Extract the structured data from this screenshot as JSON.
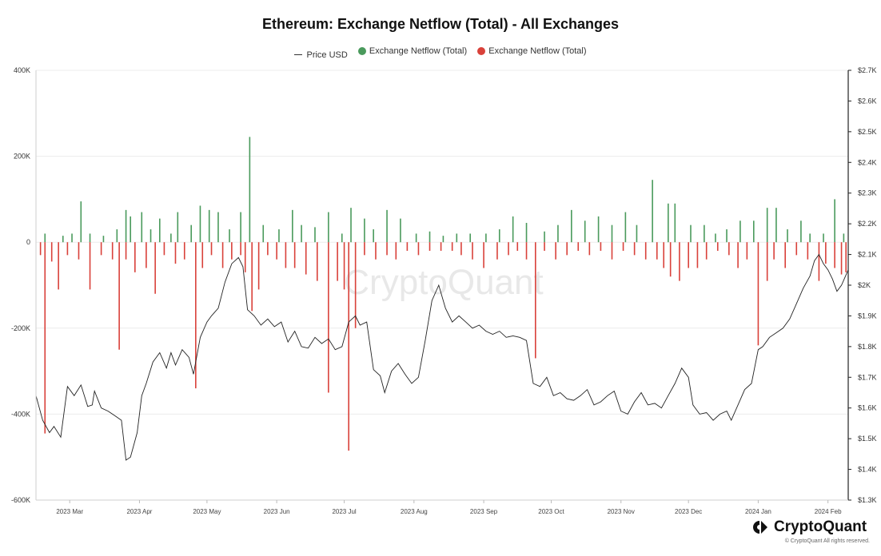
{
  "chart_data": {
    "type": "bar+line",
    "title": "Ethereum: Exchange Netflow (Total) - All Exchanges",
    "legend": [
      {
        "label": "Price USD",
        "color": "#333333",
        "marker": "line"
      },
      {
        "label": "Exchange Netflow (Total)",
        "color": "#4a9a5c",
        "marker": "dot"
      },
      {
        "label": "Exchange Netflow (Total)",
        "color": "#d9413a",
        "marker": "dot"
      }
    ],
    "legend_position": "top-center",
    "x_range": [
      "2023-02-14",
      "2024-02-10"
    ],
    "x_ticks": [
      {
        "date": "2023-03-01",
        "label": "2023 Mar"
      },
      {
        "date": "2023-04-01",
        "label": "2023 Apr"
      },
      {
        "date": "2023-05-01",
        "label": "2023 May"
      },
      {
        "date": "2023-06-01",
        "label": "2023 Jun"
      },
      {
        "date": "2023-07-01",
        "label": "2023 Jul"
      },
      {
        "date": "2023-08-01",
        "label": "2023 Aug"
      },
      {
        "date": "2023-09-01",
        "label": "2023 Sep"
      },
      {
        "date": "2023-10-01",
        "label": "2023 Oct"
      },
      {
        "date": "2023-11-01",
        "label": "2023 Nov"
      },
      {
        "date": "2023-12-01",
        "label": "2023 Dec"
      },
      {
        "date": "2024-01-01",
        "label": "2024 Jan"
      },
      {
        "date": "2024-02-01",
        "label": "2024 Feb"
      }
    ],
    "y_left": {
      "min": -600000,
      "max": 400000,
      "ticks": [
        400000,
        200000,
        0,
        -200000,
        -400000,
        -600000
      ],
      "tick_labels": [
        "400K",
        "200K",
        "0",
        "-200K",
        "-400K",
        "-600K"
      ]
    },
    "y_right": {
      "min": 1300,
      "max": 2700,
      "ticks": [
        2700,
        2600,
        2500,
        2400,
        2300,
        2200,
        2100,
        2000,
        1900,
        1800,
        1700,
        1600,
        1500,
        1400,
        1300
      ],
      "tick_labels": [
        "$2.7K",
        "$2.6K",
        "$2.5K",
        "$2.4K",
        "$2.3K",
        "$2.2K",
        "$2.1K",
        "$2K",
        "$1.9K",
        "$1.8K",
        "$1.7K",
        "$1.6K",
        "$1.5K",
        "$1.4K",
        "$1.3K"
      ]
    },
    "grid": "horizontal",
    "price_series": [
      [
        "2023-02-14",
        1640
      ],
      [
        "2023-02-17",
        1560
      ],
      [
        "2023-02-20",
        1520
      ],
      [
        "2023-02-22",
        1540
      ],
      [
        "2023-02-25",
        1505
      ],
      [
        "2023-02-28",
        1670
      ],
      [
        "2023-03-03",
        1640
      ],
      [
        "2023-03-06",
        1675
      ],
      [
        "2023-03-09",
        1605
      ],
      [
        "2023-03-11",
        1610
      ],
      [
        "2023-03-12",
        1655
      ],
      [
        "2023-03-15",
        1600
      ],
      [
        "2023-03-18",
        1590
      ],
      [
        "2023-03-21",
        1575
      ],
      [
        "2023-03-24",
        1560
      ],
      [
        "2023-03-26",
        1430
      ],
      [
        "2023-03-28",
        1440
      ],
      [
        "2023-03-31",
        1520
      ],
      [
        "2023-04-02",
        1640
      ],
      [
        "2023-04-04",
        1680
      ],
      [
        "2023-04-07",
        1750
      ],
      [
        "2023-04-10",
        1780
      ],
      [
        "2023-04-13",
        1730
      ],
      [
        "2023-04-15",
        1780
      ],
      [
        "2023-04-17",
        1740
      ],
      [
        "2023-04-20",
        1790
      ],
      [
        "2023-04-23",
        1765
      ],
      [
        "2023-04-25",
        1710
      ],
      [
        "2023-04-28",
        1830
      ],
      [
        "2023-05-01",
        1880
      ],
      [
        "2023-05-03",
        1900
      ],
      [
        "2023-05-06",
        1925
      ],
      [
        "2023-05-09",
        2010
      ],
      [
        "2023-05-12",
        2070
      ],
      [
        "2023-05-15",
        2090
      ],
      [
        "2023-05-17",
        2060
      ],
      [
        "2023-05-19",
        1920
      ],
      [
        "2023-05-22",
        1900
      ],
      [
        "2023-05-25",
        1870
      ],
      [
        "2023-05-28",
        1890
      ],
      [
        "2023-05-31",
        1865
      ],
      [
        "2023-06-03",
        1880
      ],
      [
        "2023-06-06",
        1815
      ],
      [
        "2023-06-09",
        1850
      ],
      [
        "2023-06-12",
        1800
      ],
      [
        "2023-06-15",
        1795
      ],
      [
        "2023-06-18",
        1830
      ],
      [
        "2023-06-21",
        1810
      ],
      [
        "2023-06-24",
        1825
      ],
      [
        "2023-06-27",
        1790
      ],
      [
        "2023-06-30",
        1800
      ],
      [
        "2023-07-03",
        1880
      ],
      [
        "2023-07-06",
        1900
      ],
      [
        "2023-07-08",
        1870
      ],
      [
        "2023-07-11",
        1880
      ],
      [
        "2023-07-14",
        1725
      ],
      [
        "2023-07-17",
        1705
      ],
      [
        "2023-07-19",
        1650
      ],
      [
        "2023-07-22",
        1720
      ],
      [
        "2023-07-25",
        1745
      ],
      [
        "2023-07-28",
        1710
      ],
      [
        "2023-07-31",
        1680
      ],
      [
        "2023-08-03",
        1700
      ],
      [
        "2023-08-06",
        1820
      ],
      [
        "2023-08-09",
        1950
      ],
      [
        "2023-08-12",
        2000
      ],
      [
        "2023-08-15",
        1925
      ],
      [
        "2023-08-18",
        1880
      ],
      [
        "2023-08-21",
        1900
      ],
      [
        "2023-08-24",
        1880
      ],
      [
        "2023-08-27",
        1860
      ],
      [
        "2023-08-30",
        1870
      ],
      [
        "2023-09-02",
        1850
      ],
      [
        "2023-09-05",
        1840
      ],
      [
        "2023-09-08",
        1850
      ],
      [
        "2023-09-11",
        1830
      ],
      [
        "2023-09-14",
        1835
      ],
      [
        "2023-09-17",
        1830
      ],
      [
        "2023-09-20",
        1820
      ],
      [
        "2023-09-23",
        1680
      ],
      [
        "2023-09-26",
        1670
      ],
      [
        "2023-09-29",
        1700
      ],
      [
        "2023-10-02",
        1640
      ],
      [
        "2023-10-05",
        1650
      ],
      [
        "2023-10-08",
        1630
      ],
      [
        "2023-10-11",
        1625
      ],
      [
        "2023-10-14",
        1640
      ],
      [
        "2023-10-17",
        1660
      ],
      [
        "2023-10-20",
        1610
      ],
      [
        "2023-10-23",
        1620
      ],
      [
        "2023-10-26",
        1640
      ],
      [
        "2023-10-29",
        1655
      ],
      [
        "2023-11-01",
        1590
      ],
      [
        "2023-11-04",
        1580
      ],
      [
        "2023-11-07",
        1620
      ],
      [
        "2023-11-10",
        1650
      ],
      [
        "2023-11-13",
        1610
      ],
      [
        "2023-11-16",
        1615
      ],
      [
        "2023-11-19",
        1600
      ],
      [
        "2023-11-22",
        1640
      ],
      [
        "2023-11-25",
        1680
      ],
      [
        "2023-11-28",
        1730
      ],
      [
        "2023-12-01",
        1700
      ],
      [
        "2023-12-03",
        1610
      ],
      [
        "2023-12-06",
        1580
      ],
      [
        "2023-12-09",
        1585
      ],
      [
        "2023-12-12",
        1560
      ],
      [
        "2023-12-15",
        1580
      ],
      [
        "2023-12-18",
        1590
      ],
      [
        "2023-12-20",
        1560
      ],
      [
        "2023-12-23",
        1610
      ],
      [
        "2023-12-26",
        1660
      ],
      [
        "2023-12-29",
        1680
      ],
      [
        "2024-01-01",
        1790
      ],
      [
        "2024-01-03",
        1800
      ],
      [
        "2024-01-06",
        1830
      ],
      [
        "2024-01-09",
        1845
      ],
      [
        "2024-01-12",
        1860
      ],
      [
        "2024-01-15",
        1890
      ],
      [
        "2024-01-18",
        1940
      ],
      [
        "2024-01-21",
        1990
      ],
      [
        "2024-01-24",
        2030
      ],
      [
        "2024-01-26",
        2080
      ],
      [
        "2024-01-28",
        2100
      ],
      [
        "2024-01-30",
        2070
      ],
      [
        "2024-02-01",
        2050
      ],
      [
        "2024-02-03",
        2020
      ],
      [
        "2024-02-05",
        1980
      ],
      [
        "2024-02-07",
        2000
      ],
      [
        "2024-02-10",
        2050
      ]
    ],
    "netflow_positive": [
      [
        "2023-02-18",
        20000
      ],
      [
        "2023-02-26",
        15000
      ],
      [
        "2023-03-02",
        20000
      ],
      [
        "2023-03-06",
        95000
      ],
      [
        "2023-03-10",
        20000
      ],
      [
        "2023-03-16",
        15000
      ],
      [
        "2023-03-22",
        30000
      ],
      [
        "2023-03-26",
        75000
      ],
      [
        "2023-03-28",
        60000
      ],
      [
        "2023-04-02",
        70000
      ],
      [
        "2023-04-06",
        30000
      ],
      [
        "2023-04-10",
        55000
      ],
      [
        "2023-04-15",
        20000
      ],
      [
        "2023-04-18",
        70000
      ],
      [
        "2023-04-24",
        40000
      ],
      [
        "2023-04-28",
        85000
      ],
      [
        "2023-05-02",
        75000
      ],
      [
        "2023-05-06",
        70000
      ],
      [
        "2023-05-11",
        30000
      ],
      [
        "2023-05-16",
        70000
      ],
      [
        "2023-05-20",
        245000
      ],
      [
        "2023-05-26",
        40000
      ],
      [
        "2023-06-02",
        30000
      ],
      [
        "2023-06-08",
        75000
      ],
      [
        "2023-06-12",
        40000
      ],
      [
        "2023-06-18",
        35000
      ],
      [
        "2023-06-24",
        70000
      ],
      [
        "2023-06-30",
        20000
      ],
      [
        "2023-07-04",
        80000
      ],
      [
        "2023-07-10",
        55000
      ],
      [
        "2023-07-14",
        30000
      ],
      [
        "2023-07-20",
        75000
      ],
      [
        "2023-07-26",
        55000
      ],
      [
        "2023-08-02",
        20000
      ],
      [
        "2023-08-08",
        25000
      ],
      [
        "2023-08-14",
        15000
      ],
      [
        "2023-08-20",
        20000
      ],
      [
        "2023-08-26",
        20000
      ],
      [
        "2023-09-02",
        20000
      ],
      [
        "2023-09-08",
        30000
      ],
      [
        "2023-09-14",
        60000
      ],
      [
        "2023-09-20",
        45000
      ],
      [
        "2023-09-28",
        25000
      ],
      [
        "2023-10-04",
        40000
      ],
      [
        "2023-10-10",
        75000
      ],
      [
        "2023-10-16",
        50000
      ],
      [
        "2023-10-22",
        60000
      ],
      [
        "2023-10-28",
        40000
      ],
      [
        "2023-11-03",
        70000
      ],
      [
        "2023-11-08",
        40000
      ],
      [
        "2023-11-15",
        145000
      ],
      [
        "2023-11-22",
        90000
      ],
      [
        "2023-11-25",
        90000
      ],
      [
        "2023-12-02",
        40000
      ],
      [
        "2023-12-08",
        40000
      ],
      [
        "2023-12-13",
        20000
      ],
      [
        "2023-12-18",
        30000
      ],
      [
        "2023-12-24",
        50000
      ],
      [
        "2023-12-30",
        50000
      ],
      [
        "2024-01-05",
        80000
      ],
      [
        "2024-01-09",
        80000
      ],
      [
        "2024-01-14",
        30000
      ],
      [
        "2024-01-20",
        50000
      ],
      [
        "2024-01-24",
        20000
      ],
      [
        "2024-01-30",
        20000
      ],
      [
        "2024-02-04",
        100000
      ],
      [
        "2024-02-08",
        20000
      ]
    ],
    "netflow_negative": [
      [
        "2023-02-16",
        -30000
      ],
      [
        "2023-02-18",
        -445000
      ],
      [
        "2023-02-21",
        -45000
      ],
      [
        "2023-02-24",
        -110000
      ],
      [
        "2023-02-28",
        -30000
      ],
      [
        "2023-03-05",
        -40000
      ],
      [
        "2023-03-10",
        -110000
      ],
      [
        "2023-03-15",
        -30000
      ],
      [
        "2023-03-20",
        -40000
      ],
      [
        "2023-03-23",
        -250000
      ],
      [
        "2023-03-26",
        -40000
      ],
      [
        "2023-03-30",
        -70000
      ],
      [
        "2023-04-04",
        -60000
      ],
      [
        "2023-04-08",
        -120000
      ],
      [
        "2023-04-12",
        -30000
      ],
      [
        "2023-04-17",
        -50000
      ],
      [
        "2023-04-21",
        -40000
      ],
      [
        "2023-04-26",
        -340000
      ],
      [
        "2023-04-29",
        -60000
      ],
      [
        "2023-05-03",
        -30000
      ],
      [
        "2023-05-08",
        -60000
      ],
      [
        "2023-05-12",
        -40000
      ],
      [
        "2023-05-16",
        -30000
      ],
      [
        "2023-05-18",
        -70000
      ],
      [
        "2023-05-21",
        -160000
      ],
      [
        "2023-05-24",
        -110000
      ],
      [
        "2023-05-28",
        -30000
      ],
      [
        "2023-06-01",
        -40000
      ],
      [
        "2023-06-05",
        -60000
      ],
      [
        "2023-06-09",
        -60000
      ],
      [
        "2023-06-14",
        -75000
      ],
      [
        "2023-06-19",
        -90000
      ],
      [
        "2023-06-24",
        -350000
      ],
      [
        "2023-06-28",
        -90000
      ],
      [
        "2023-07-01",
        -110000
      ],
      [
        "2023-07-03",
        -485000
      ],
      [
        "2023-07-06",
        -200000
      ],
      [
        "2023-07-10",
        -30000
      ],
      [
        "2023-07-15",
        -40000
      ],
      [
        "2023-07-20",
        -30000
      ],
      [
        "2023-07-24",
        -40000
      ],
      [
        "2023-07-29",
        -20000
      ],
      [
        "2023-08-03",
        -30000
      ],
      [
        "2023-08-08",
        -20000
      ],
      [
        "2023-08-13",
        -20000
      ],
      [
        "2023-08-18",
        -20000
      ],
      [
        "2023-08-22",
        -30000
      ],
      [
        "2023-08-27",
        -40000
      ],
      [
        "2023-09-01",
        -60000
      ],
      [
        "2023-09-07",
        -40000
      ],
      [
        "2023-09-12",
        -30000
      ],
      [
        "2023-09-16",
        -20000
      ],
      [
        "2023-09-20",
        -40000
      ],
      [
        "2023-09-24",
        -270000
      ],
      [
        "2023-09-28",
        -20000
      ],
      [
        "2023-10-03",
        -40000
      ],
      [
        "2023-10-08",
        -30000
      ],
      [
        "2023-10-13",
        -20000
      ],
      [
        "2023-10-18",
        -30000
      ],
      [
        "2023-10-23",
        -20000
      ],
      [
        "2023-10-28",
        -40000
      ],
      [
        "2023-11-02",
        -20000
      ],
      [
        "2023-11-07",
        -30000
      ],
      [
        "2023-11-12",
        -40000
      ],
      [
        "2023-11-17",
        -40000
      ],
      [
        "2023-11-20",
        -60000
      ],
      [
        "2023-11-23",
        -80000
      ],
      [
        "2023-11-27",
        -90000
      ],
      [
        "2023-12-01",
        -60000
      ],
      [
        "2023-12-05",
        -60000
      ],
      [
        "2023-12-09",
        -40000
      ],
      [
        "2023-12-14",
        -20000
      ],
      [
        "2023-12-19",
        -30000
      ],
      [
        "2023-12-23",
        -60000
      ],
      [
        "2023-12-27",
        -40000
      ],
      [
        "2024-01-01",
        -240000
      ],
      [
        "2024-01-05",
        -90000
      ],
      [
        "2024-01-08",
        -40000
      ],
      [
        "2024-01-13",
        -60000
      ],
      [
        "2024-01-18",
        -30000
      ],
      [
        "2024-01-23",
        -40000
      ],
      [
        "2024-01-28",
        -90000
      ],
      [
        "2024-01-31",
        -50000
      ],
      [
        "2024-02-04",
        -60000
      ],
      [
        "2024-02-07",
        -75000
      ],
      [
        "2024-02-09",
        -70000
      ]
    ]
  },
  "watermark": "CryptoQuant",
  "brand": {
    "name": "CryptoQuant",
    "copyright": "© CryptoQuant All rights reserved."
  }
}
